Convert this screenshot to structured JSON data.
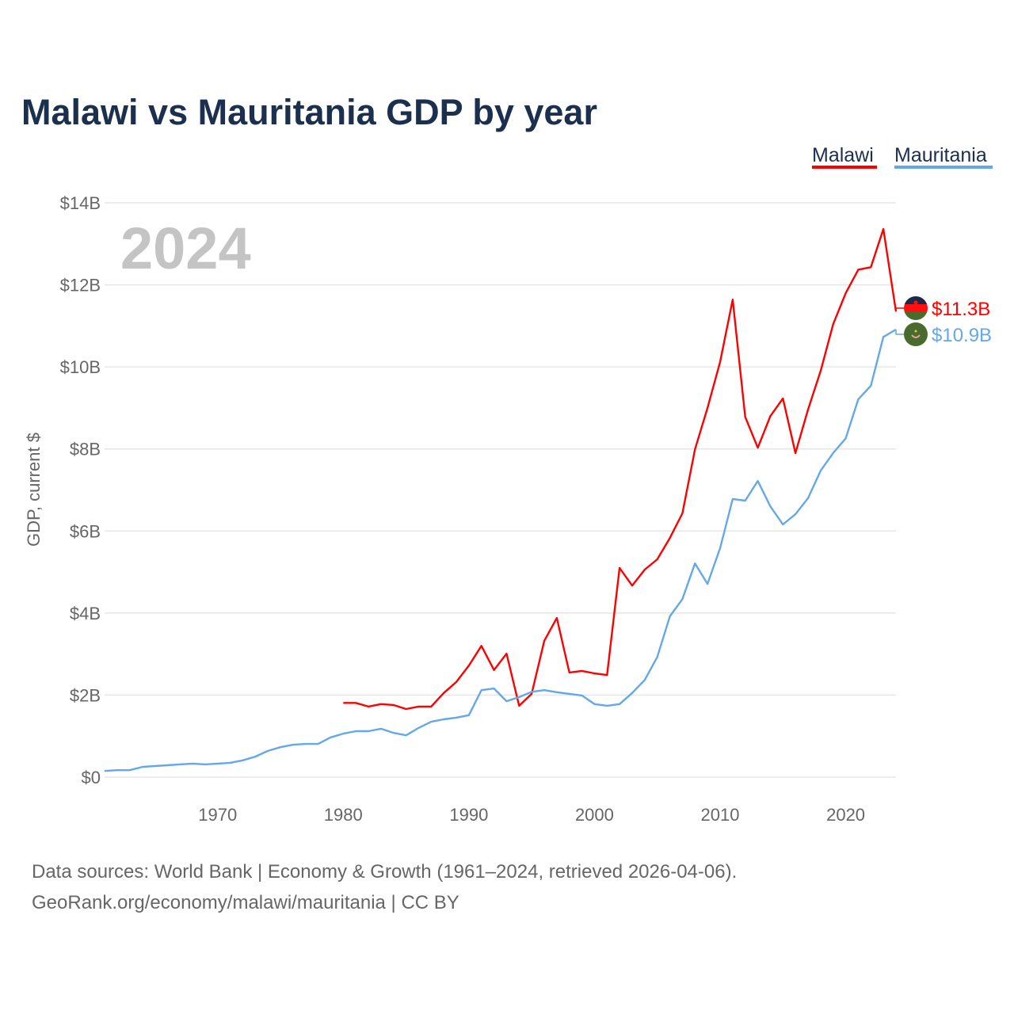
{
  "chart_data": {
    "type": "line",
    "title": "Malawi vs Mauritania GDP by year",
    "ylabel": "GDP, current $",
    "xlabel": "",
    "xlim": [
      1961,
      2024
    ],
    "ylim": [
      0,
      14
    ],
    "x_ticks": [
      1970,
      1980,
      1990,
      2000,
      2010,
      2020
    ],
    "y_ticks": [
      0,
      2,
      4,
      6,
      8,
      10,
      12,
      14
    ],
    "y_tick_labels": [
      "$0",
      "$2B",
      "$4B",
      "$6B",
      "$8B",
      "$10B",
      "$12B",
      "$14B"
    ],
    "grid": true,
    "legend_position": "top-right",
    "year_watermark": "2024",
    "units": "billions USD",
    "series": [
      {
        "name": "Malawi",
        "color": "#ff0000",
        "start_year": 1980,
        "end_label": "$11.3B",
        "flag": "malawi-flag",
        "values": [
          1.81,
          1.81,
          1.72,
          1.78,
          1.76,
          1.66,
          1.72,
          1.72,
          2.05,
          2.32,
          2.72,
          3.2,
          2.61,
          3.01,
          1.74,
          2.03,
          3.32,
          3.88,
          2.55,
          2.59,
          2.53,
          2.49,
          5.1,
          4.67,
          5.06,
          5.31,
          5.83,
          6.43,
          7.99,
          9.0,
          10.12,
          11.64,
          8.78,
          8.03,
          8.8,
          9.23,
          7.9,
          8.96,
          9.9,
          11.04,
          11.8,
          12.37,
          12.43,
          13.36,
          11.35
        ]
      },
      {
        "name": "Mauritania",
        "color": "#64a8ea",
        "start_year": 1961,
        "end_label": "$10.9B",
        "flag": "mauritania-flag",
        "values": [
          0.15,
          0.17,
          0.17,
          0.25,
          0.27,
          0.29,
          0.31,
          0.33,
          0.31,
          0.33,
          0.35,
          0.41,
          0.5,
          0.64,
          0.73,
          0.79,
          0.81,
          0.81,
          0.97,
          1.06,
          1.12,
          1.12,
          1.18,
          1.08,
          1.02,
          1.2,
          1.35,
          1.41,
          1.45,
          1.51,
          2.12,
          2.16,
          1.85,
          1.95,
          2.08,
          2.12,
          2.07,
          2.03,
          1.99,
          1.78,
          1.74,
          1.78,
          2.05,
          2.37,
          2.93,
          3.92,
          4.34,
          5.21,
          4.71,
          5.58,
          6.78,
          6.74,
          7.22,
          6.6,
          6.16,
          6.41,
          6.8,
          7.47,
          7.9,
          8.26,
          9.21,
          9.54,
          10.73,
          10.91
        ]
      }
    ]
  },
  "footer": {
    "line1": "Data sources: World Bank | Economy & Growth (1961–2024, retrieved 2026-04-06).",
    "line2": "GeoRank.org/economy/malawi/mauritania | CC BY"
  }
}
